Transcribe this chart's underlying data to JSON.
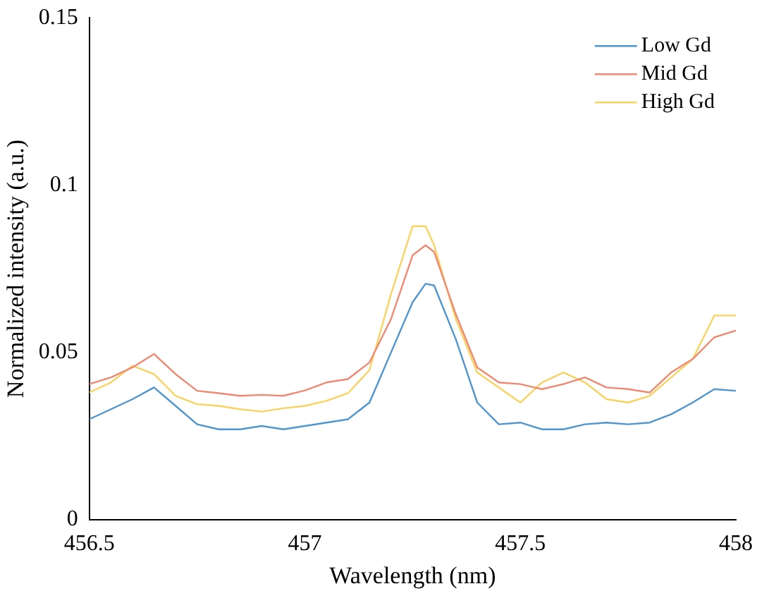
{
  "chart_data": {
    "type": "line",
    "xlabel": "Wavelength (nm)",
    "ylabel": "Normalized intensity (a.u.)",
    "x": [
      456.5,
      456.55,
      456.6,
      456.65,
      456.7,
      456.75,
      456.8,
      456.85,
      456.9,
      456.95,
      457,
      457.05,
      457.1,
      457.15,
      457.2,
      457.25,
      457.28,
      457.3,
      457.35,
      457.4,
      457.45,
      457.5,
      457.55,
      457.6,
      457.65,
      457.7,
      457.75,
      457.8,
      457.85,
      457.9,
      457.95,
      458
    ],
    "series": [
      {
        "name": "Low Gd",
        "color": "#4f95cf",
        "values": [
          0.03,
          0.033,
          0.036,
          0.0395,
          0.034,
          0.0285,
          0.027,
          0.027,
          0.028,
          0.027,
          0.028,
          0.029,
          0.03,
          0.035,
          0.05,
          0.065,
          0.0705,
          0.07,
          0.054,
          0.035,
          0.0285,
          0.029,
          0.027,
          0.027,
          0.0285,
          0.029,
          0.0285,
          0.029,
          0.0315,
          0.035,
          0.039,
          0.0385
        ]
      },
      {
        "name": "Mid Gd",
        "color": "#ee8a72",
        "values": [
          0.0405,
          0.0425,
          0.0455,
          0.0495,
          0.0435,
          0.0385,
          0.0378,
          0.037,
          0.0373,
          0.037,
          0.0386,
          0.041,
          0.042,
          0.047,
          0.06,
          0.079,
          0.082,
          0.08,
          0.0615,
          0.0455,
          0.041,
          0.0405,
          0.039,
          0.0405,
          0.0425,
          0.0395,
          0.039,
          0.038,
          0.044,
          0.048,
          0.0545,
          0.0565
        ]
      },
      {
        "name": "High Gd",
        "color": "#f9d262",
        "values": [
          0.038,
          0.041,
          0.046,
          0.0435,
          0.037,
          0.0345,
          0.034,
          0.033,
          0.0323,
          0.0333,
          0.034,
          0.0355,
          0.0378,
          0.0447,
          0.0675,
          0.0877,
          0.0877,
          0.082,
          0.06,
          0.044,
          0.0395,
          0.035,
          0.041,
          0.044,
          0.041,
          0.036,
          0.035,
          0.037,
          0.0425,
          0.048,
          0.061,
          0.061
        ]
      }
    ],
    "xlim": [
      456.5,
      458
    ],
    "xticks": [
      456.5,
      457,
      457.5,
      458
    ],
    "ylim": [
      0,
      0.15
    ],
    "yticks": [
      0,
      0.05,
      0.1,
      0.15
    ],
    "grid": false,
    "legend": "top right",
    "marker": "none",
    "line_style": "solid"
  }
}
